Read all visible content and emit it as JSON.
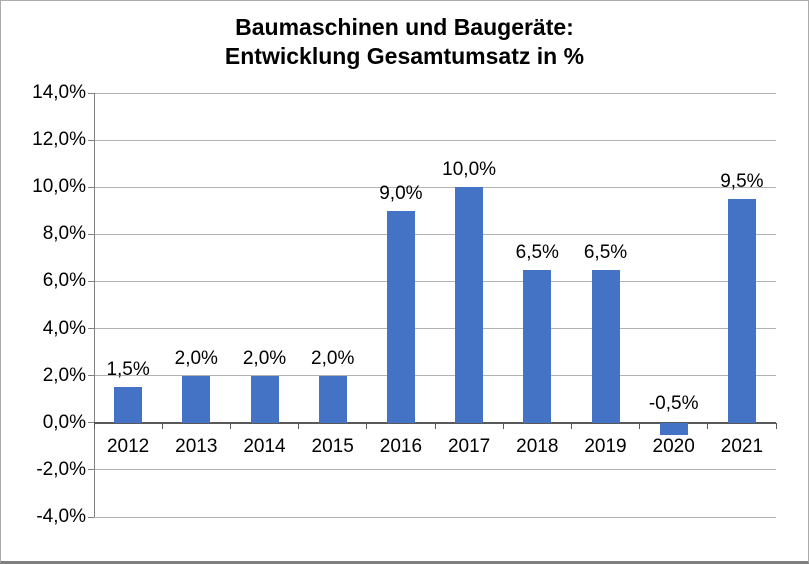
{
  "title": {
    "line1": "Baumaschinen und Baugeräte:",
    "line2": "Entwicklung Gesamtumsatz in %"
  },
  "chart_data": {
    "type": "bar",
    "title": "Baumaschinen und Baugeräte: Entwicklung Gesamtumsatz in %",
    "categories": [
      "2012",
      "2013",
      "2014",
      "2015",
      "2016",
      "2017",
      "2018",
      "2019",
      "2020",
      "2021"
    ],
    "values": [
      1.5,
      2.0,
      2.0,
      2.0,
      9.0,
      10.0,
      6.5,
      6.5,
      -0.5,
      9.5
    ],
    "value_labels": [
      "1,5%",
      "2,0%",
      "2,0%",
      "2,0%",
      "9,0%",
      "10,0%",
      "6,5%",
      "6,5%",
      "-0,5%",
      "9,5%"
    ],
    "xlabel": "",
    "ylabel": "",
    "ylim": [
      -4,
      14
    ],
    "yticks": [
      14,
      12,
      10,
      8,
      6,
      4,
      2,
      0,
      -2,
      -4
    ],
    "ytick_labels": [
      "14,0%",
      "12,0%",
      "10,0%",
      "8,0%",
      "6,0%",
      "4,0%",
      "2,0%",
      "0,0%",
      "-2,0%",
      "-4,0%"
    ],
    "grid": true,
    "legend": "none",
    "bar_color": "#4472c4",
    "gridline_color": "#b3b3b3",
    "axis_color": "#808080",
    "zero_line_color": "#595959",
    "text_color": "#000000"
  }
}
